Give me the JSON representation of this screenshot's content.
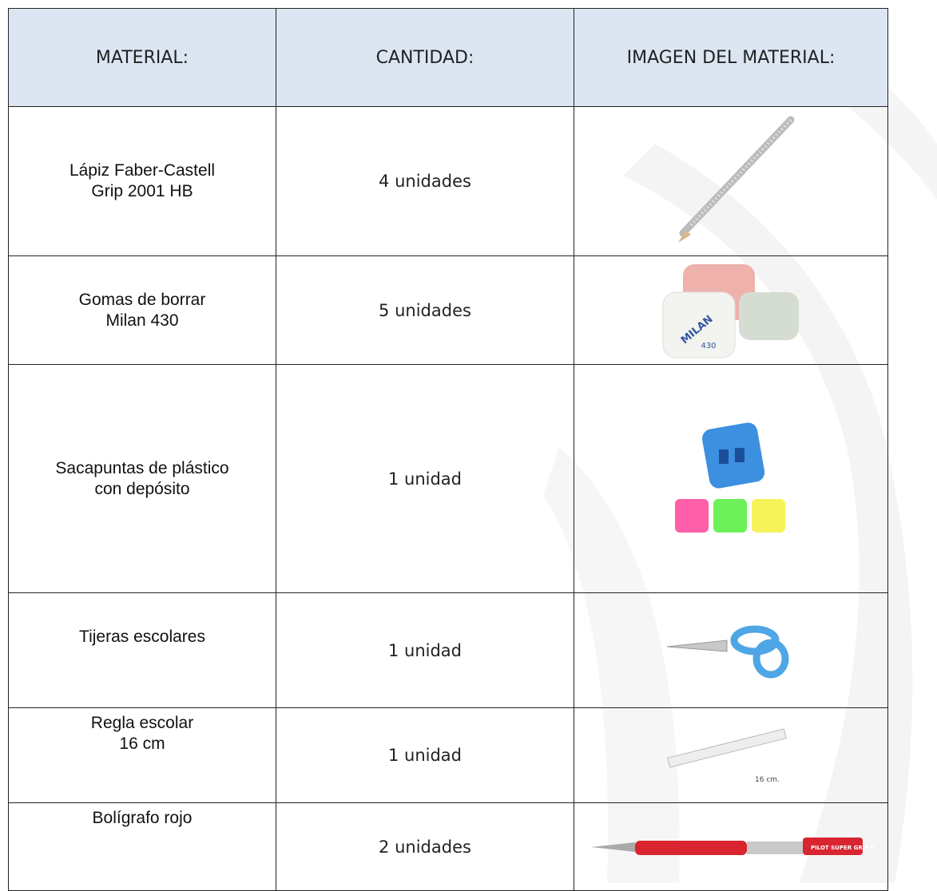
{
  "table": {
    "header": [
      "MATERIAL:",
      "CANTIDAD:",
      "IMAGEN DEL MATERIAL:"
    ],
    "rows": [
      {
        "material": [
          "Lápiz Faber-Castell",
          "Grip 2001 HB"
        ],
        "quantity": "4 unidades"
      },
      {
        "material": [
          "Gomas de borrar",
          "Milan 430"
        ],
        "quantity": "5 unidades",
        "image_text": [
          "MILAN",
          "430"
        ]
      },
      {
        "material": [
          "Sacapuntas de plástico",
          "con depósito"
        ],
        "quantity": "1 unidad"
      },
      {
        "material": [
          "Tijeras escolares"
        ],
        "quantity": "1 unidad"
      },
      {
        "material": [
          "Regla escolar",
          "16 cm"
        ],
        "quantity": "1 unidad",
        "image_text": [
          "16 cm."
        ]
      },
      {
        "material": [
          "Bolígrafo rojo"
        ],
        "quantity": "2 unidades",
        "image_text": [
          "PILOT SUPER GRIP (M)"
        ]
      }
    ]
  }
}
